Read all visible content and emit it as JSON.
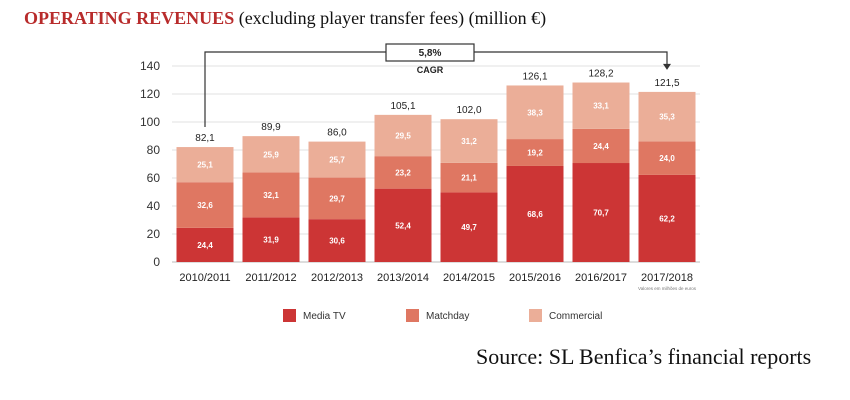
{
  "title": {
    "highlight": "OPERATING REVENUES",
    "rest": " (excluding player transfer fees) (million €)"
  },
  "source": "Source: SL Benfica’s financial reports",
  "colors": {
    "media_tv": "#cc3535",
    "matchday": "#df7762",
    "commercial": "#ebae98",
    "accent": "#b82b2b"
  },
  "chart_data": {
    "type": "bar",
    "stacked": true,
    "categories": [
      "2010/2011",
      "2011/2012",
      "2012/2013",
      "2013/2014",
      "2014/2015",
      "2015/2016",
      "2016/2017",
      "2017/2018"
    ],
    "series": [
      {
        "name": "Media TV",
        "values": [
          24.4,
          31.9,
          30.6,
          52.4,
          49.7,
          68.6,
          70.7,
          62.2
        ],
        "labels": [
          "24,4",
          "31,9",
          "30,6",
          "52,4",
          "49,7",
          "68,6",
          "70,7",
          "62,2"
        ]
      },
      {
        "name": "Matchday",
        "values": [
          32.6,
          32.1,
          29.7,
          23.2,
          21.1,
          19.2,
          24.4,
          24.0
        ],
        "labels": [
          "32,6",
          "32,1",
          "29,7",
          "23,2",
          "21,1",
          "19,2",
          "24,4",
          "24,0"
        ]
      },
      {
        "name": "Commercial",
        "values": [
          25.1,
          25.9,
          25.7,
          29.5,
          31.2,
          38.3,
          33.1,
          35.3
        ],
        "labels": [
          "25,1",
          "25,9",
          "25,7",
          "29,5",
          "31,2",
          "38,3",
          "33,1",
          "35,3"
        ]
      }
    ],
    "totals": [
      82.1,
      89.9,
      86.0,
      105.1,
      102.0,
      126.1,
      128.2,
      121.5
    ],
    "total_labels": [
      "82,1",
      "89,9",
      "86,0",
      "105,1",
      "102,0",
      "126,1",
      "128,2",
      "121,5"
    ],
    "ylim": [
      0,
      140
    ],
    "yticks": [
      0,
      20,
      40,
      60,
      80,
      100,
      120,
      140
    ],
    "grid": true,
    "legend_position": "bottom",
    "annotation": {
      "value": "5,8%",
      "label": "CAGR",
      "from": "2010/2011",
      "to": "2017/2018"
    },
    "note": "Valores em milhões de euros"
  }
}
